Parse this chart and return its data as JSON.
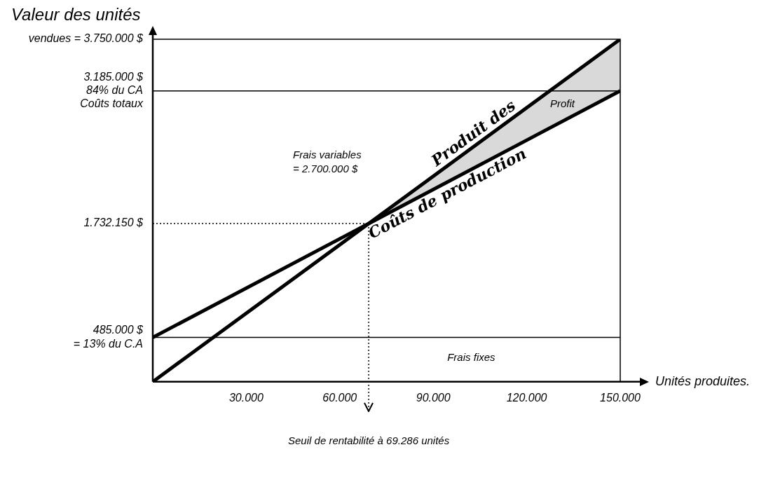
{
  "chart_data": {
    "type": "line",
    "ylabel": "Valeur des unités",
    "xlabel": "Unités produites.",
    "xlim": [
      0,
      150000
    ],
    "ylim": [
      0,
      3750000
    ],
    "xticks": [
      {
        "value": 30000,
        "label": "30.000"
      },
      {
        "value": 60000,
        "label": "60.000"
      },
      {
        "value": 90000,
        "label": "90.000"
      },
      {
        "value": 120000,
        "label": "120.000"
      },
      {
        "value": 150000,
        "label": "150.000"
      }
    ],
    "yticks": [
      {
        "value": 485000,
        "label": "485.000 $\n= 13% du C.A"
      },
      {
        "value": 1732150,
        "label": "1.732.150 $"
      },
      {
        "value": 3185000,
        "label": "3.185.000 $\n84% du CA\nCoûts totaux"
      },
      {
        "value": 3750000,
        "label": "vendues = 3.750.000 $"
      }
    ],
    "series": [
      {
        "name": "Produit des",
        "color": "#000000",
        "x": [
          0,
          69286,
          150000
        ],
        "values": [
          0,
          1732150,
          3750000
        ],
        "lower": [
          null,
          1732150,
          3185000
        ],
        "upper": [
          null,
          1732150,
          3750000
        ]
      },
      {
        "name": "Coûts de production",
        "color": "#000000",
        "x": [
          0,
          150000
        ],
        "values": [
          485000,
          3185000
        ]
      }
    ],
    "ref_lines": [
      {
        "axis": "y",
        "value": 485000,
        "color": "#000000",
        "line_style": "solid"
      },
      {
        "axis": "y",
        "value": 3185000,
        "color": "#000000",
        "line_style": "solid"
      },
      {
        "axis": "y",
        "value": 1732150,
        "color": "#000000",
        "line_style": "dotted"
      },
      {
        "axis": "x",
        "value": 69286,
        "label": "Seuil de rentabilité à 69.286 unités",
        "color": "#000000",
        "line_style": "dotted"
      }
    ],
    "annotations": [
      "Frais variables\n= 2.700.000 $",
      "Frais fixes",
      "Profit"
    ],
    "grid": false,
    "legend": false,
    "marker": "none",
    "line_style": "solid"
  }
}
